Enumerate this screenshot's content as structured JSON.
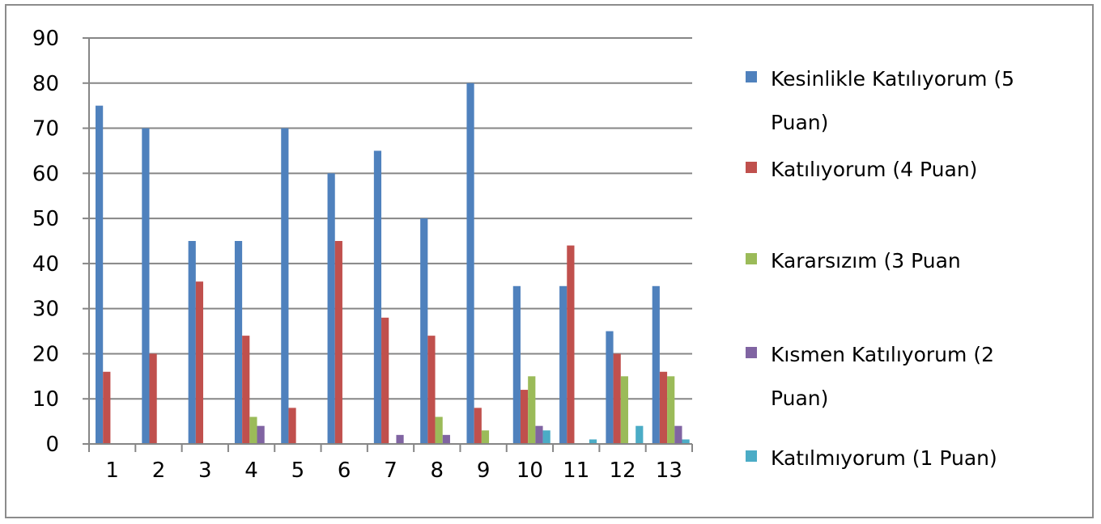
{
  "chart_data": {
    "type": "bar",
    "title": "",
    "xlabel": "",
    "ylabel": "",
    "ylim": [
      0,
      90
    ],
    "y_ticks": [
      0,
      10,
      20,
      30,
      40,
      50,
      60,
      70,
      80,
      90
    ],
    "grid": true,
    "legend_position": "right",
    "categories": [
      "1",
      "2",
      "3",
      "4",
      "5",
      "6",
      "7",
      "8",
      "9",
      "10",
      "11",
      "12",
      "13"
    ],
    "series": [
      {
        "name": "Kesinlikle Katılıyorum (5 Puan)",
        "legend_lines": [
          "Kesinlikle Katılıyorum (5",
          "Puan)"
        ],
        "color": "#4F81BD",
        "values": [
          75,
          70,
          45,
          45,
          70,
          60,
          65,
          50,
          80,
          35,
          35,
          25,
          35
        ]
      },
      {
        "name": "Katılıyorum (4 Puan)",
        "legend_lines": [
          "Katılıyorum (4 Puan)"
        ],
        "color": "#C0504D",
        "values": [
          16,
          20,
          36,
          24,
          8,
          45,
          28,
          24,
          8,
          12,
          44,
          20,
          16
        ]
      },
      {
        "name": "Kararsızım (3 Puan",
        "legend_lines": [
          "Kararsızım (3 Puan"
        ],
        "color": "#9BBB59",
        "values": [
          0,
          0,
          0,
          6,
          0,
          0,
          0,
          6,
          3,
          15,
          0,
          15,
          15
        ]
      },
      {
        "name": "Kısmen Katılıyorum (2 Puan)",
        "legend_lines": [
          "Kısmen Katılıyorum (2",
          "Puan)"
        ],
        "color": "#8064A2",
        "values": [
          0,
          0,
          0,
          4,
          0,
          0,
          2,
          2,
          0,
          4,
          0,
          0,
          4
        ]
      },
      {
        "name": "Katılmıyorum (1 Puan)",
        "legend_lines": [
          "Katılmıyorum (1 Puan)"
        ],
        "color": "#4BACC6",
        "values": [
          0,
          0,
          0,
          0,
          0,
          0,
          0,
          0,
          0,
          3,
          1,
          4,
          1
        ]
      }
    ]
  }
}
